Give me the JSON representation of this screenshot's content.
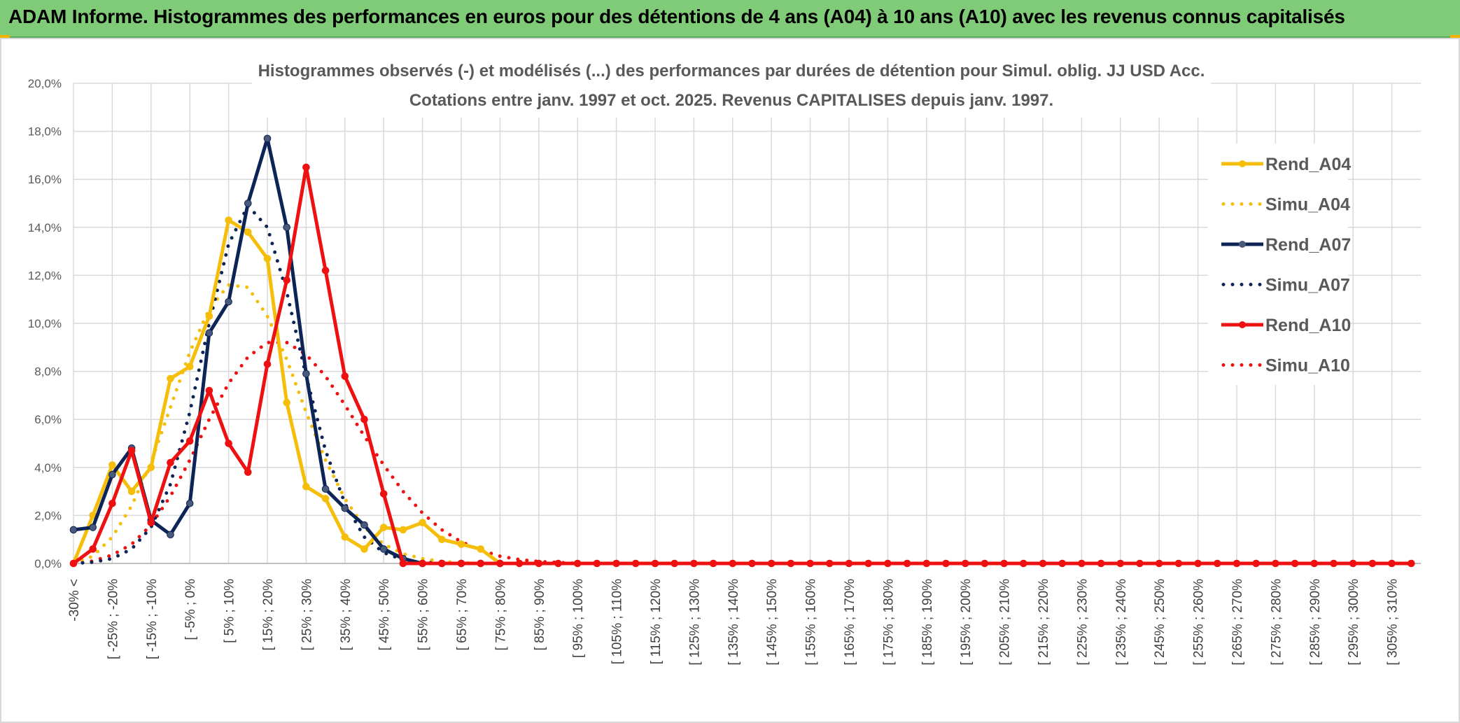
{
  "banner": {
    "title": "ADAM Informe. Histogrammes des performances en euros pour des détentions de 4 ans (A04) à 10 ans (A10) avec les revenus connus capitalisés"
  },
  "colors": {
    "banner_bg": "#7fcb78",
    "A04": "#f5be0b",
    "A07": "#0d2457",
    "A10": "#ee1111"
  },
  "chart_data": {
    "type": "line",
    "title": "Histogrammes observés (-) et modélisés (...) des performances par durées de détention pour Simul. oblig. JJ USD Acc.",
    "subtitle": "Cotations entre janv. 1997 et oct. 2025. Revenus CAPITALISES depuis janv. 1997.",
    "y_ticks": [
      "0,0%",
      "2,0%",
      "4,0%",
      "6,0%",
      "8,0%",
      "10,0%",
      "12,0%",
      "14,0%",
      "16,0%",
      "18,0%",
      "20,0%"
    ],
    "ylim": [
      0,
      20
    ],
    "grid": true,
    "legend_position": "right",
    "categories_count": 70,
    "x_tick_labels": [
      {
        "index": 0,
        "label": "-30% <"
      },
      {
        "index": 2,
        "label": "[ -25% ; -20%"
      },
      {
        "index": 4,
        "label": "[ -15% ; -10%"
      },
      {
        "index": 6,
        "label": "[ -5% ; 0%"
      },
      {
        "index": 8,
        "label": "[ 5% ; 10%"
      },
      {
        "index": 10,
        "label": "[ 15% ; 20%"
      },
      {
        "index": 12,
        "label": "[ 25% ; 30%"
      },
      {
        "index": 14,
        "label": "[ 35% ; 40%"
      },
      {
        "index": 16,
        "label": "[ 45% ; 50%"
      },
      {
        "index": 18,
        "label": "[ 55% ; 60%"
      },
      {
        "index": 20,
        "label": "[ 65% ; 70%"
      },
      {
        "index": 22,
        "label": "[ 75% ; 80%"
      },
      {
        "index": 24,
        "label": "[ 85% ; 90%"
      },
      {
        "index": 26,
        "label": "[ 95% ; 100%"
      },
      {
        "index": 28,
        "label": "[ 105% ; 110%"
      },
      {
        "index": 30,
        "label": "[ 115% ; 120%"
      },
      {
        "index": 32,
        "label": "[ 125% ; 130%"
      },
      {
        "index": 34,
        "label": "[ 135% ; 140%"
      },
      {
        "index": 36,
        "label": "[ 145% ; 150%"
      },
      {
        "index": 38,
        "label": "[ 155% ; 160%"
      },
      {
        "index": 40,
        "label": "[ 165% ; 170%"
      },
      {
        "index": 42,
        "label": "[ 175% ; 180%"
      },
      {
        "index": 44,
        "label": "[ 185% ; 190%"
      },
      {
        "index": 46,
        "label": "[ 195% ; 200%"
      },
      {
        "index": 48,
        "label": "[ 205% ; 210%"
      },
      {
        "index": 50,
        "label": "[ 215% ; 220%"
      },
      {
        "index": 52,
        "label": "[ 225% ; 230%"
      },
      {
        "index": 54,
        "label": "[ 235% ; 240%"
      },
      {
        "index": 56,
        "label": "[ 245% ; 250%"
      },
      {
        "index": 58,
        "label": "[ 255% ; 260%"
      },
      {
        "index": 60,
        "label": "[ 265% ; 270%"
      },
      {
        "index": 62,
        "label": "[ 275% ; 280%"
      },
      {
        "index": 64,
        "label": "[ 285% ; 290%"
      },
      {
        "index": 66,
        "label": "[ 295% ; 300%"
      },
      {
        "index": 68,
        "label": "[ 305% ; 310%"
      }
    ],
    "series": [
      {
        "name": "Rend_A04",
        "key": "A04",
        "style": "solid",
        "markers": true,
        "points": [
          [
            0,
            0
          ],
          [
            1,
            2
          ],
          [
            2,
            4.1
          ],
          [
            3,
            3
          ],
          [
            4,
            4
          ],
          [
            5,
            7.7
          ],
          [
            6,
            8.2
          ],
          [
            7,
            10.3
          ],
          [
            8,
            14.3
          ],
          [
            9,
            13.8
          ],
          [
            10,
            12.7
          ],
          [
            11,
            6.7
          ],
          [
            12,
            3.2
          ],
          [
            13,
            2.7
          ],
          [
            14,
            1.1
          ],
          [
            15,
            0.6
          ],
          [
            16,
            1.5
          ],
          [
            17,
            1.4
          ],
          [
            18,
            1.7
          ],
          [
            19,
            1
          ],
          [
            20,
            0.8
          ],
          [
            21,
            0.6
          ],
          [
            22,
            0
          ]
        ]
      },
      {
        "name": "Simu_A04",
        "key": "A04",
        "style": "dotted",
        "markers": false,
        "points": [
          [
            0,
            0
          ],
          [
            1,
            0.3
          ],
          [
            2,
            1.1
          ],
          [
            3,
            2.4
          ],
          [
            4,
            4.2
          ],
          [
            5,
            6.5
          ],
          [
            6,
            8.8
          ],
          [
            7,
            10.6
          ],
          [
            8,
            11.6
          ],
          [
            9,
            11.5
          ],
          [
            10,
            10.3
          ],
          [
            11,
            8.5
          ],
          [
            12,
            6.3
          ],
          [
            13,
            4.3
          ],
          [
            14,
            2.7
          ],
          [
            15,
            1.5
          ],
          [
            16,
            0.8
          ],
          [
            17,
            0.4
          ],
          [
            18,
            0.2
          ],
          [
            19,
            0.08
          ],
          [
            20,
            0.03
          ],
          [
            21,
            0
          ],
          [
            22,
            0
          ]
        ]
      },
      {
        "name": "Rend_A07",
        "key": "A07",
        "style": "solid",
        "markers": true,
        "points": [
          [
            0,
            1.4
          ],
          [
            1,
            1.5
          ],
          [
            2,
            3.7
          ],
          [
            3,
            4.8
          ],
          [
            4,
            1.8
          ],
          [
            5,
            1.2
          ],
          [
            6,
            2.5
          ],
          [
            7,
            9.6
          ],
          [
            8,
            10.9
          ],
          [
            9,
            15
          ],
          [
            10,
            17.7
          ],
          [
            11,
            14
          ],
          [
            12,
            7.9
          ],
          [
            13,
            3.1
          ],
          [
            14,
            2.3
          ],
          [
            15,
            1.6
          ],
          [
            16,
            0.6
          ],
          [
            17,
            0.2
          ],
          [
            18,
            0
          ],
          [
            19,
            0
          ],
          [
            20,
            0
          ],
          [
            21,
            0
          ],
          [
            22,
            0
          ]
        ]
      },
      {
        "name": "Simu_A07",
        "key": "A07",
        "style": "dotted",
        "markers": false,
        "points": [
          [
            0,
            0
          ],
          [
            1,
            0.05
          ],
          [
            2,
            0.2
          ],
          [
            3,
            0.6
          ],
          [
            4,
            1.5
          ],
          [
            5,
            3.3
          ],
          [
            6,
            6.3
          ],
          [
            7,
            10
          ],
          [
            8,
            13.3
          ],
          [
            9,
            14.9
          ],
          [
            10,
            14
          ],
          [
            11,
            11.3
          ],
          [
            12,
            7.8
          ],
          [
            13,
            4.7
          ],
          [
            14,
            2.5
          ],
          [
            15,
            1.1
          ],
          [
            16,
            0.45
          ],
          [
            17,
            0.15
          ],
          [
            18,
            0.05
          ],
          [
            19,
            0
          ],
          [
            20,
            0
          ],
          [
            21,
            0
          ],
          [
            22,
            0
          ]
        ]
      },
      {
        "name": "Rend_A10",
        "key": "A10",
        "style": "solid",
        "markers": true,
        "points": [
          [
            0,
            0
          ],
          [
            1,
            0.6
          ],
          [
            2,
            2.5
          ],
          [
            3,
            4.7
          ],
          [
            4,
            1.7
          ],
          [
            5,
            4.2
          ],
          [
            6,
            5.1
          ],
          [
            7,
            7.2
          ],
          [
            8,
            5
          ],
          [
            9,
            3.8
          ],
          [
            10,
            8.3
          ],
          [
            11,
            11.8
          ],
          [
            12,
            16.5
          ],
          [
            13,
            12.2
          ],
          [
            14,
            7.8
          ],
          [
            15,
            6
          ],
          [
            16,
            2.9
          ],
          [
            17,
            0
          ],
          [
            18,
            0
          ],
          [
            19,
            0
          ],
          [
            20,
            0
          ],
          [
            21,
            0
          ],
          [
            22,
            0
          ],
          [
            69,
            0
          ]
        ]
      },
      {
        "name": "Simu_A10",
        "key": "A10",
        "style": "dotted",
        "markers": false,
        "points": [
          [
            0,
            0
          ],
          [
            1,
            0.1
          ],
          [
            2,
            0.35
          ],
          [
            3,
            0.8
          ],
          [
            4,
            1.6
          ],
          [
            5,
            2.8
          ],
          [
            6,
            4.3
          ],
          [
            7,
            6
          ],
          [
            8,
            7.5
          ],
          [
            9,
            8.6
          ],
          [
            10,
            9.2
          ],
          [
            11,
            9.2
          ],
          [
            12,
            8.7
          ],
          [
            13,
            7.8
          ],
          [
            14,
            6.6
          ],
          [
            15,
            5.3
          ],
          [
            16,
            4.1
          ],
          [
            17,
            3
          ],
          [
            18,
            2.1
          ],
          [
            19,
            1.4
          ],
          [
            20,
            0.9
          ],
          [
            21,
            0.55
          ],
          [
            22,
            0.3
          ],
          [
            23,
            0.16
          ],
          [
            24,
            0.08
          ],
          [
            25,
            0.04
          ],
          [
            26,
            0
          ]
        ]
      }
    ]
  }
}
